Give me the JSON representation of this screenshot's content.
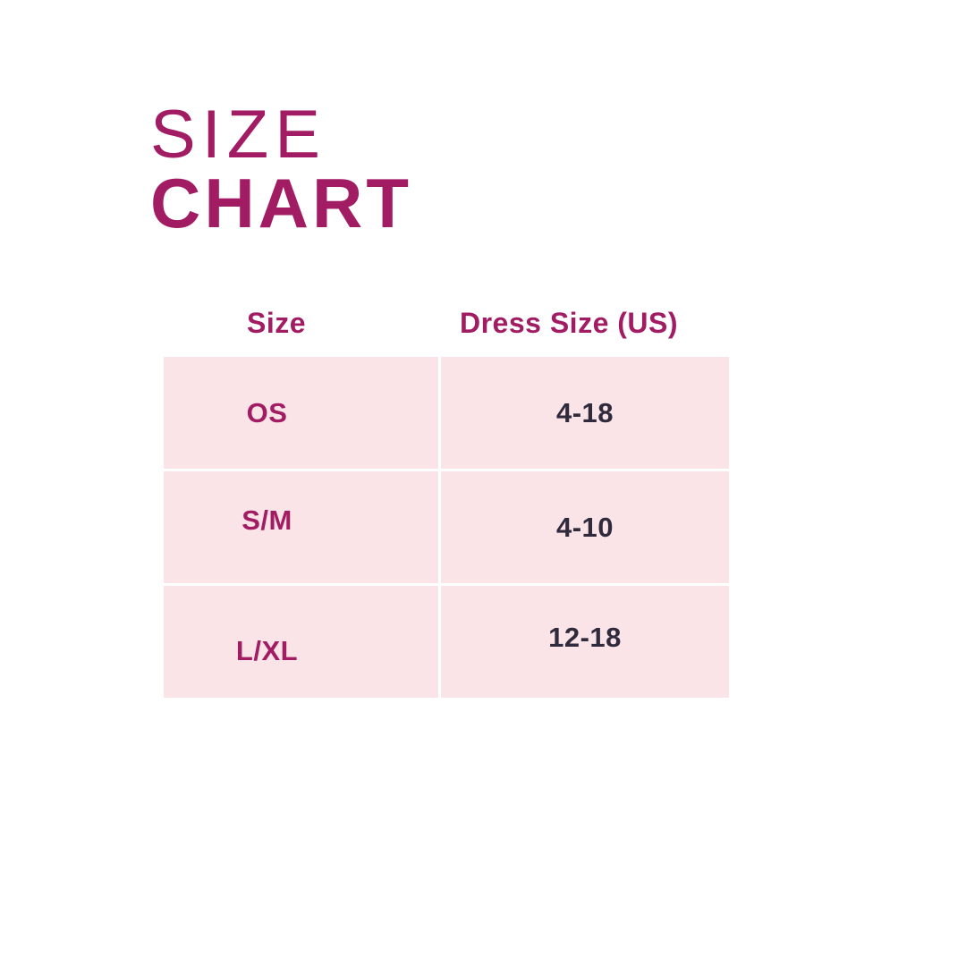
{
  "title": {
    "line1": "SIZE",
    "line2": "CHART"
  },
  "table": {
    "headers": [
      "Size",
      "Dress Size (US)"
    ],
    "rows": [
      {
        "size": "OS",
        "dress_size": "4-18"
      },
      {
        "size": "S/M",
        "dress_size": "4-10"
      },
      {
        "size": "L/XL",
        "dress_size": "12-18"
      }
    ]
  },
  "chart_data": {
    "type": "table",
    "title": "SIZE CHART",
    "columns": [
      "Size",
      "Dress Size (US)"
    ],
    "rows": [
      [
        "OS",
        "4-18"
      ],
      [
        "S/M",
        "4-10"
      ],
      [
        "L/XL",
        "12-18"
      ]
    ],
    "layout": "two-column size chart, pink cells on white background, headers above table"
  },
  "colors": {
    "accent_magenta": "#A21C64",
    "value_text": "#2F2B3D",
    "cell_background": "#FBE4E7",
    "page_background": "#FFFFFF"
  }
}
